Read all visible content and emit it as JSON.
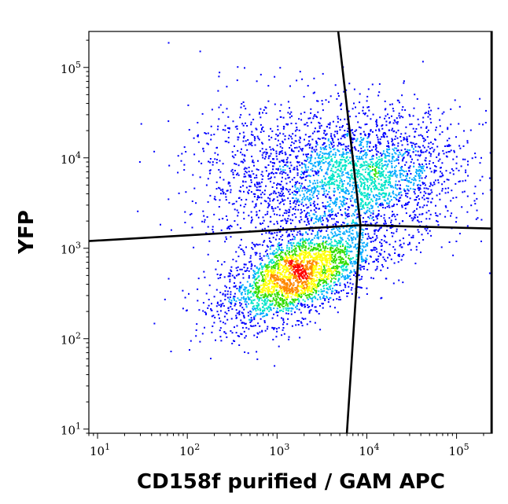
{
  "chart_data": {
    "type": "scatter",
    "subtype": "flow-cytometry-density-dot-plot",
    "title": "",
    "xlabel": "CD158f purified / GAM APC",
    "ylabel": "YFP",
    "x_scale": "log",
    "y_scale": "log",
    "xlim": [
      8,
      250000
    ],
    "ylim": [
      9,
      250000
    ],
    "x_ticks": [
      {
        "value": 10,
        "base": "10",
        "exp": "1"
      },
      {
        "value": 100,
        "base": "10",
        "exp": "2"
      },
      {
        "value": 1000,
        "base": "10",
        "exp": "3"
      },
      {
        "value": 10000,
        "base": "10",
        "exp": "4"
      },
      {
        "value": 100000,
        "base": "10",
        "exp": "5"
      }
    ],
    "y_ticks": [
      {
        "value": 10,
        "base": "10",
        "exp": "1"
      },
      {
        "value": 100,
        "base": "10",
        "exp": "2"
      },
      {
        "value": 1000,
        "base": "10",
        "exp": "3"
      },
      {
        "value": 10000,
        "base": "10",
        "exp": "4"
      },
      {
        "value": 100000,
        "base": "10",
        "exp": "5"
      }
    ],
    "grid": false,
    "legend": "none",
    "color_scale": [
      "#0000ff",
      "#00aaff",
      "#00e5c8",
      "#33dd00",
      "#ffff00",
      "#ff8800",
      "#ff0000"
    ],
    "populations": [
      {
        "center": [
          1600,
          500
        ],
        "count": 2600,
        "spread": [
          0.42,
          0.27
        ],
        "corr": 0.55,
        "density": "high"
      },
      {
        "center": [
          9000,
          6000
        ],
        "count": 2400,
        "spread": [
          0.55,
          0.38
        ],
        "corr": 0.1,
        "density": "medium"
      },
      {
        "center": [
          700,
          7000
        ],
        "count": 700,
        "spread": [
          0.45,
          0.45
        ],
        "corr": 0.0,
        "density": "low"
      }
    ],
    "quadrant_gates": {
      "horizontal_line": [
        [
          8,
          1200
        ],
        [
          8500,
          1800
        ],
        [
          250000,
          1650
        ]
      ],
      "vertical_line": [
        [
          4800,
          250000
        ],
        [
          8500,
          1800
        ],
        [
          6000,
          9
        ]
      ],
      "right_boundary_x": 250000
    }
  }
}
